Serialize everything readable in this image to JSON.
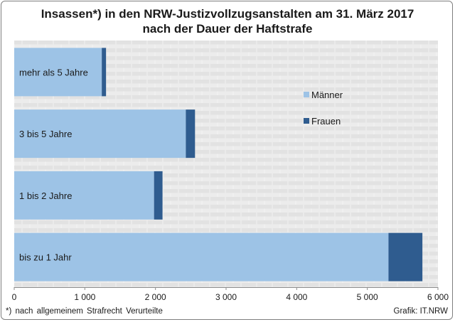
{
  "title_line1": "Insassen*) in den NRW-Justizvollzugsanstalten am 31. März 2017",
  "title_line2": "nach der Dauer der Haftstrafe",
  "footnote": "*) nach allgemeinem Strafrecht Verurteilte",
  "source": "Grafik: IT.NRW",
  "colors": {
    "maenner": "#9dc3e6",
    "frauen": "#2f5c8f",
    "grid_band": "#e6e6e6",
    "grid_line": "#ffffff"
  },
  "chart_data": {
    "type": "bar",
    "orientation": "horizontal",
    "stacked": true,
    "categories": [
      "bis zu 1 Jahr",
      "1 bis 2 Jahre",
      "3 bis 5 Jahre",
      "mehr als 5 Jahre"
    ],
    "series": [
      {
        "name": "Männer",
        "values": [
          5300,
          1980,
          2430,
          1240
        ]
      },
      {
        "name": "Frauen",
        "values": [
          480,
          120,
          130,
          60
        ]
      }
    ],
    "xlim": [
      0,
      6000
    ],
    "xticks": [
      "0",
      "1 000",
      "2 000",
      "3 000",
      "4 000",
      "5 000",
      "6 000"
    ],
    "legend_position": "right",
    "grid": true
  }
}
